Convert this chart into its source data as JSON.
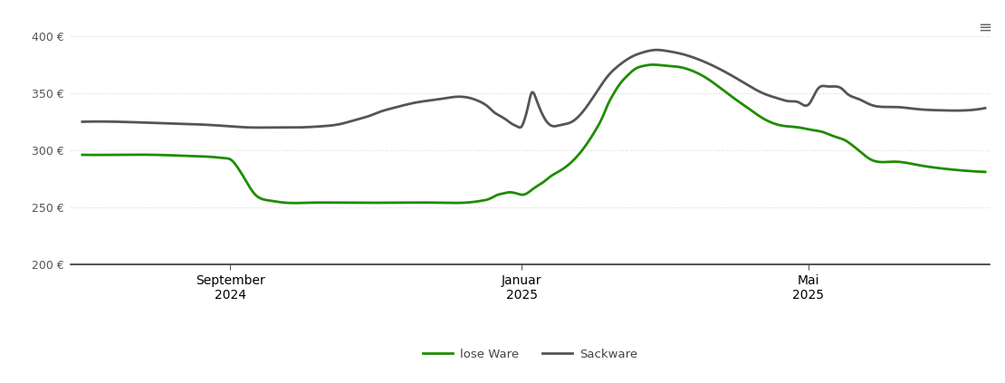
{
  "background_color": "#ffffff",
  "plot_bg_color": "#ffffff",
  "grid_color": "#d8d8d8",
  "ylim": [
    200,
    415
  ],
  "yticks": [
    200,
    250,
    300,
    350,
    400
  ],
  "lose_ware_color": "#1f8c00",
  "sackware_color": "#555555",
  "line_width": 2.0,
  "legend_items": [
    "lose Ware",
    "Sackware"
  ],
  "xtick_days": [
    62,
    184,
    304
  ],
  "xtick_labels": [
    "September\n2024",
    "Januar\n2025",
    "Mai\n2025"
  ],
  "xlim": [
    -5,
    380
  ],
  "lw_x": [
    0,
    15,
    30,
    45,
    55,
    60,
    62,
    65,
    68,
    72,
    78,
    85,
    95,
    110,
    130,
    150,
    160,
    165,
    168,
    170,
    172,
    174,
    176,
    178,
    180,
    182,
    184,
    186,
    188,
    190,
    193,
    196,
    200,
    205,
    210,
    215,
    218,
    220,
    222,
    225,
    228,
    230,
    232,
    235,
    238,
    240,
    245,
    250,
    255,
    260,
    265,
    270,
    278,
    285,
    292,
    300,
    305,
    310,
    315,
    318,
    320,
    322,
    325,
    330,
    340,
    350,
    360,
    370,
    378
  ],
  "lw_y": [
    296,
    296,
    296,
    295,
    294,
    293,
    292,
    285,
    275,
    262,
    256,
    254,
    254,
    254,
    254,
    254,
    254,
    255,
    256,
    257,
    259,
    261,
    262,
    263,
    263,
    262,
    261,
    262,
    265,
    268,
    272,
    277,
    282,
    290,
    302,
    318,
    330,
    340,
    348,
    358,
    365,
    369,
    372,
    374,
    375,
    375,
    374,
    373,
    370,
    365,
    358,
    350,
    338,
    328,
    322,
    320,
    318,
    316,
    312,
    310,
    308,
    305,
    300,
    292,
    290,
    287,
    284,
    282,
    281
  ],
  "sw_x": [
    0,
    15,
    30,
    45,
    55,
    62,
    70,
    80,
    90,
    100,
    108,
    115,
    120,
    125,
    130,
    140,
    150,
    158,
    162,
    165,
    168,
    170,
    172,
    175,
    178,
    180,
    182,
    183,
    184,
    185,
    186,
    187,
    188,
    190,
    193,
    196,
    200,
    205,
    210,
    215,
    220,
    225,
    230,
    235,
    240,
    245,
    250,
    255,
    260,
    268,
    278,
    285,
    292,
    296,
    300,
    304,
    308,
    312,
    315,
    318,
    320,
    325,
    330,
    340,
    350,
    360,
    370,
    378
  ],
  "sw_y": [
    325,
    325,
    324,
    323,
    322,
    321,
    320,
    320,
    320,
    321,
    323,
    327,
    330,
    334,
    337,
    342,
    345,
    347,
    346,
    344,
    341,
    338,
    334,
    330,
    326,
    323,
    321,
    320,
    321,
    326,
    333,
    342,
    350,
    345,
    330,
    322,
    322,
    325,
    335,
    350,
    365,
    375,
    382,
    386,
    388,
    387,
    385,
    382,
    378,
    370,
    358,
    350,
    345,
    343,
    342,
    340,
    354,
    356,
    356,
    354,
    350,
    345,
    340,
    338,
    336,
    335,
    335,
    337
  ]
}
